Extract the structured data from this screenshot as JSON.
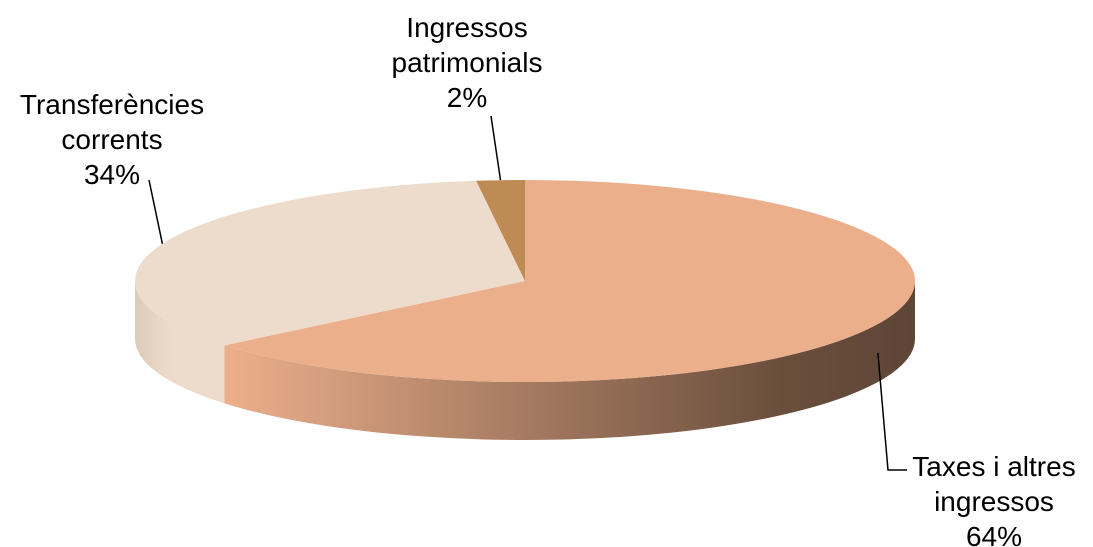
{
  "chart_data": {
    "type": "pie",
    "style": "3d",
    "categories": [
      "Taxes i altres ingressos",
      "Transferències corrents",
      "Ingressos patrimonials"
    ],
    "values": [
      64,
      34,
      2
    ],
    "labels": [
      {
        "name_lines": [
          "Taxes i altres",
          "ingressos"
        ],
        "percent": "64%"
      },
      {
        "name_lines": [
          "Transferències",
          "corrents"
        ],
        "percent": "34%"
      },
      {
        "name_lines": [
          "Ingressos",
          "patrimonials"
        ],
        "percent": "2%"
      }
    ],
    "colors": [
      "#ECAF8C",
      "#EDDCCB",
      "#BE8B55"
    ],
    "side_shadow_color": "#6B4F3D",
    "legend": "none"
  }
}
